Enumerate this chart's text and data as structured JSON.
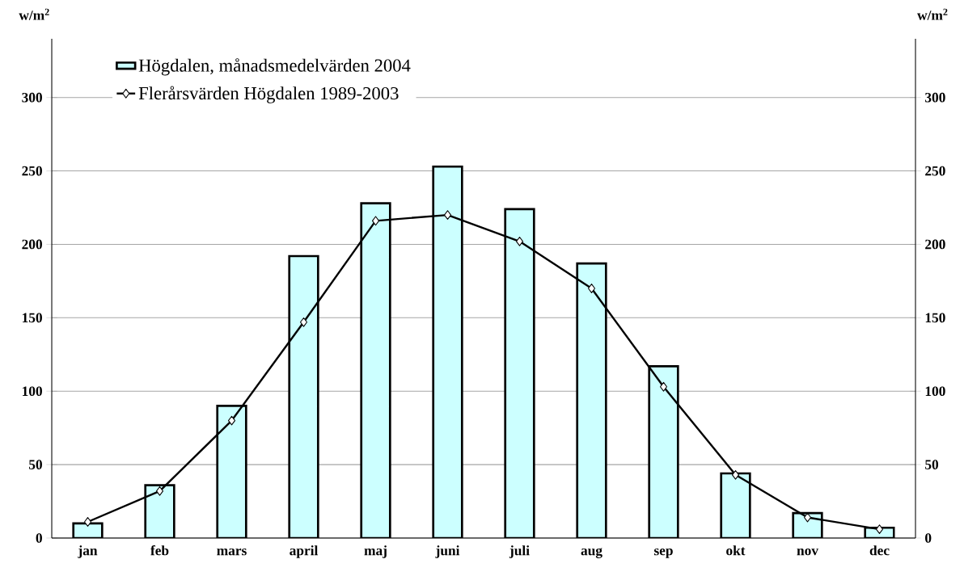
{
  "chart_data": {
    "type": "bar",
    "ylabel": "w/m$^{2}$",
    "y2label": "w/m$^{2}$",
    "categories": [
      "jan",
      "feb",
      "mars",
      "april",
      "maj",
      "juni",
      "juli",
      "aug",
      "sep",
      "okt",
      "nov",
      "dec"
    ],
    "series": [
      {
        "name": "Högdalen, månadsmedelvärden 2004",
        "color": "#ccffff",
        "values": [
          10,
          36,
          90,
          192,
          228,
          253,
          224,
          187,
          117,
          44,
          17,
          7
        ]
      },
      {
        "name": "Flerårsvärden Högdalen 1989-2003",
        "type": "line",
        "color": "#000000",
        "marker": "diamond",
        "values": [
          11,
          32,
          80,
          147,
          216,
          220,
          202,
          170,
          103,
          43,
          14,
          6
        ]
      }
    ],
    "ylim": [
      0,
      340
    ],
    "yticks": [
      0,
      50,
      100,
      150,
      200,
      250,
      300
    ],
    "y2lim": [
      0,
      340
    ],
    "y2ticks": [
      0,
      50,
      100,
      150,
      200,
      250,
      300
    ],
    "grid": "y",
    "legend": "top left"
  }
}
